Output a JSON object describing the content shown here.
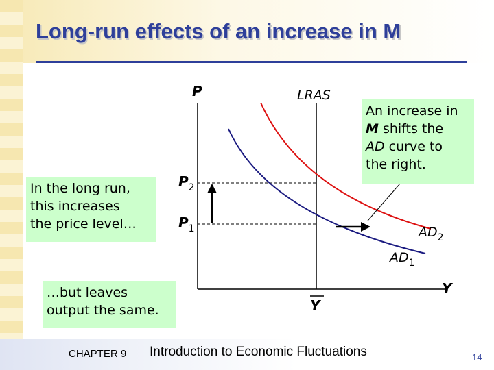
{
  "slide": {
    "title": "Long-run effects of an increase in M",
    "footer_chapter": "CHAPTER 9",
    "footer_text": "Introduction to Economic Fluctuations",
    "page_number": "14"
  },
  "diagram": {
    "y_axis_label": "P",
    "x_axis_label": "Y",
    "vertical_line_label": "LRAS",
    "x_marker_label": "Y",
    "price_levels": [
      {
        "label": "P",
        "sub": "2"
      },
      {
        "label": "P",
        "sub": "1"
      }
    ],
    "curves": [
      {
        "label": "AD",
        "sub": "1",
        "color": "#1a1a80"
      },
      {
        "label": "AD",
        "sub": "2",
        "color": "#dd1111"
      }
    ],
    "colors": {
      "title": "#2e3f9a",
      "note_background": "#ccffcc",
      "ad1": "#1a1a80",
      "ad2": "#dd1111",
      "lras": "#000000"
    }
  },
  "notes": {
    "right_line1": "An increase in",
    "right_line2_m": "M",
    "right_line2_rest": " shifts the",
    "right_line3_ad": "AD",
    "right_line3_rest": " curve to",
    "right_line4": "the right.",
    "left_line1": "In the long run,",
    "left_line2": "this increases",
    "left_line3": "the price level…",
    "bottom_line1": "…but leaves",
    "bottom_line2": "output the same."
  }
}
